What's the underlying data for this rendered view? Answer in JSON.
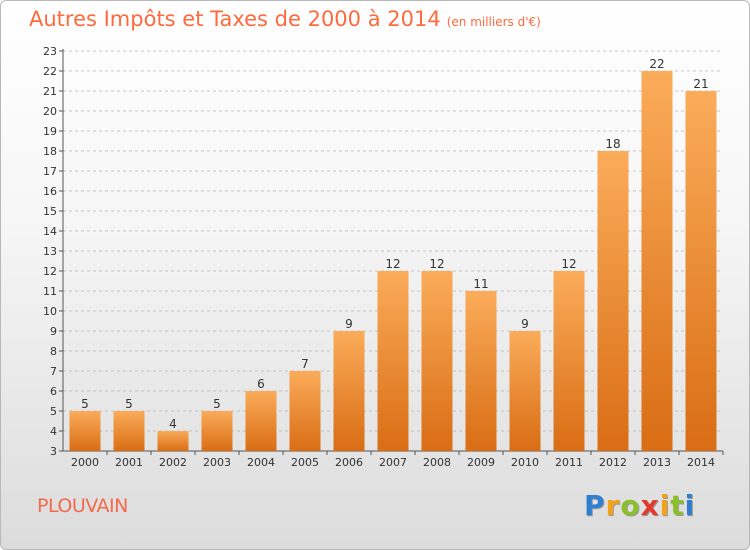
{
  "header": {
    "title": "Autres Impôts et Taxes de 2000 à 2014",
    "unit": "(en milliers d'€)"
  },
  "footer": {
    "commune": "PLOUVAIN",
    "logo": {
      "letters": [
        "P",
        "r",
        "o",
        "x",
        "i",
        "t",
        "i"
      ],
      "colors": [
        "#2f7fd0",
        "#f5a21b",
        "#8dbf2c",
        "#e23b2e",
        "#f5a21b",
        "#8dbf2c",
        "#2f7fd0"
      ]
    }
  },
  "chart_data": {
    "type": "bar",
    "categories": [
      "2000",
      "2001",
      "2002",
      "2003",
      "2004",
      "2005",
      "2006",
      "2007",
      "2008",
      "2009",
      "2010",
      "2011",
      "2012",
      "2013",
      "2014"
    ],
    "values": [
      5,
      5,
      4,
      5,
      6,
      7,
      9,
      12,
      12,
      11,
      9,
      12,
      18,
      22,
      21
    ],
    "ylim": [
      3,
      23
    ],
    "yticks": [
      3,
      4,
      5,
      6,
      7,
      8,
      9,
      10,
      11,
      12,
      13,
      14,
      15,
      16,
      17,
      18,
      19,
      20,
      21,
      22,
      23
    ],
    "grid": "horizontal dashed",
    "bar_colors": {
      "top": "#fbac5a",
      "bottom": "#d96d14"
    },
    "data_labels": true
  }
}
